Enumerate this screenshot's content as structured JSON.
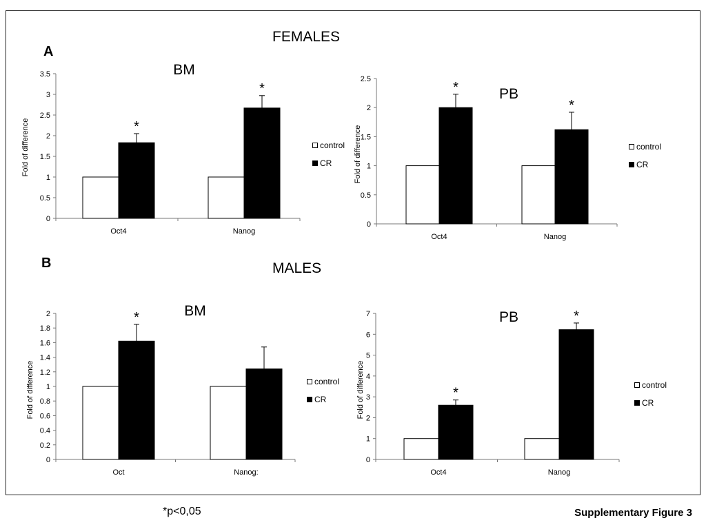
{
  "sections": {
    "females": "FEMALES",
    "males": "MALES",
    "panel_a": "A",
    "panel_b": "B"
  },
  "footnote": "*p<0,05",
  "figure_label": "Supplementary Figure 3",
  "legend": {
    "control": "control",
    "cr": "CR"
  },
  "colors": {
    "control": "#ffffff",
    "cr": "#000000",
    "axis": "#777777"
  },
  "chart_data": [
    {
      "id": "females-bm",
      "type": "bar",
      "title": "BM",
      "ylabel": "Fold of difference",
      "categories": [
        "Oct4",
        "Nanog"
      ],
      "ylim": [
        0,
        3.5
      ],
      "yticks": [
        "0",
        "0.5",
        "1",
        "1.5",
        "2",
        "2.5",
        "3",
        "3.5"
      ],
      "series": [
        {
          "name": "control",
          "values": [
            1,
            1
          ],
          "errors": [
            0,
            0
          ]
        },
        {
          "name": "CR",
          "values": [
            1.83,
            2.67
          ],
          "errors": [
            0.22,
            0.3
          ]
        }
      ],
      "significance": [
        "*",
        "*"
      ]
    },
    {
      "id": "females-pb",
      "type": "bar",
      "title": "PB",
      "ylabel": "Fold of difference",
      "categories": [
        "Oct4",
        "Nanog"
      ],
      "ylim": [
        0,
        2.5
      ],
      "yticks": [
        "0",
        "0.5",
        "1",
        "1.5",
        "2",
        "2.5"
      ],
      "series": [
        {
          "name": "control",
          "values": [
            1,
            1
          ],
          "errors": [
            0,
            0
          ]
        },
        {
          "name": "CR",
          "values": [
            2.0,
            1.62
          ],
          "errors": [
            0.23,
            0.3
          ]
        }
      ],
      "significance": [
        "*",
        "*"
      ]
    },
    {
      "id": "males-bm",
      "type": "bar",
      "title": "BM",
      "ylabel": "Fold of difference",
      "categories": [
        "Oct",
        "Nanog:"
      ],
      "ylim": [
        0,
        2
      ],
      "yticks": [
        "0",
        "0.2",
        "0.4",
        "0.6",
        "0.8",
        "1",
        "1.2",
        "1.4",
        "1.6",
        "1.8",
        "2"
      ],
      "series": [
        {
          "name": "control",
          "values": [
            1,
            1
          ],
          "errors": [
            0,
            0
          ]
        },
        {
          "name": "CR",
          "values": [
            1.62,
            1.24
          ],
          "errors": [
            0.23,
            0.3
          ]
        }
      ],
      "significance": [
        "*",
        ""
      ]
    },
    {
      "id": "males-pb",
      "type": "bar",
      "title": "PB",
      "ylabel": "Fold of difference",
      "categories": [
        "Oct4",
        "Nanog"
      ],
      "ylim": [
        0,
        7
      ],
      "yticks": [
        "0",
        "1",
        "2",
        "3",
        "4",
        "5",
        "6",
        "7"
      ],
      "series": [
        {
          "name": "control",
          "values": [
            1,
            1
          ],
          "errors": [
            0,
            0
          ]
        },
        {
          "name": "CR",
          "values": [
            2.6,
            6.22
          ],
          "errors": [
            0.25,
            0.32
          ]
        }
      ],
      "significance": [
        "*",
        "*"
      ]
    }
  ]
}
